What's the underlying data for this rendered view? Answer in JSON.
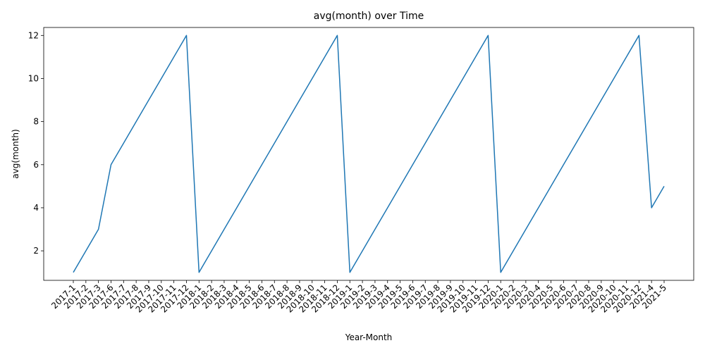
{
  "chart_data": {
    "type": "line",
    "title": "avg(month) over Time",
    "xlabel": "Year-Month",
    "ylabel": "avg(month)",
    "ylim": [
      0.63,
      12.37
    ],
    "yticks": [
      2,
      4,
      6,
      8,
      10,
      12
    ],
    "grid": false,
    "line_color": "#1f77b4",
    "categories": [
      "2017-1",
      "2017-2",
      "2017-3",
      "2017-6",
      "2017-7",
      "2017-8",
      "2017-9",
      "2017-10",
      "2017-11",
      "2017-12",
      "2018-1",
      "2018-2",
      "2018-3",
      "2018-4",
      "2018-5",
      "2018-6",
      "2018-7",
      "2018-8",
      "2018-9",
      "2018-10",
      "2018-11",
      "2018-12",
      "2019-1",
      "2019-2",
      "2019-3",
      "2019-4",
      "2019-5",
      "2019-6",
      "2019-7",
      "2019-8",
      "2019-9",
      "2019-10",
      "2019-11",
      "2019-12",
      "2020-1",
      "2020-2",
      "2020-3",
      "2020-4",
      "2020-5",
      "2020-6",
      "2020-7",
      "2020-8",
      "2020-9",
      "2020-10",
      "2020-11",
      "2020-12",
      "2021-4",
      "2021-5"
    ],
    "values": [
      1,
      2,
      3,
      6,
      7,
      8,
      9,
      10,
      11,
      12,
      1,
      2,
      3,
      4,
      5,
      6,
      7,
      8,
      9,
      10,
      11,
      12,
      1,
      2,
      3,
      4,
      5,
      6,
      7,
      8,
      9,
      10,
      11,
      12,
      1,
      2,
      3,
      4,
      5,
      6,
      7,
      8,
      9,
      10,
      11,
      12,
      4,
      5
    ]
  }
}
